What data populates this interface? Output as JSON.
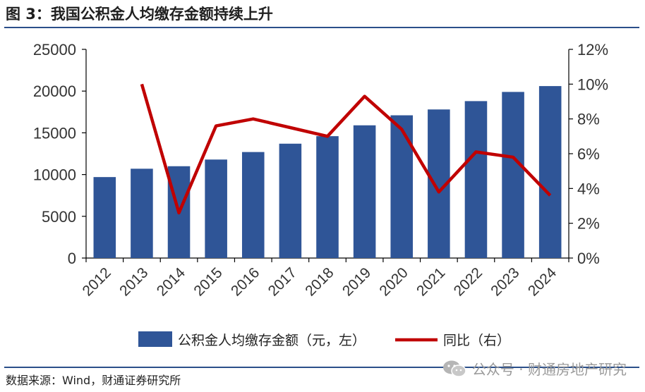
{
  "title": "图 3：我国公积金人均缴存金额持续上升",
  "source": "数据来源：Wind，财通证券研究所",
  "watermark": "公众号 · 财通房地产研究",
  "colors": {
    "bar": "#2f5597",
    "line": "#c00000",
    "rule": "#2b4f8a"
  },
  "chart_data": {
    "type": "bar+line",
    "categories": [
      "2012",
      "2013",
      "2014",
      "2015",
      "2016",
      "2017",
      "2018",
      "2019",
      "2020",
      "2021",
      "2022",
      "2023",
      "2024"
    ],
    "series": [
      {
        "name": "公积金人均缴存金额（元，左）",
        "type": "bar",
        "axis": "left",
        "values": [
          9700,
          10700,
          11000,
          11800,
          12700,
          13700,
          14600,
          15900,
          17100,
          17800,
          18800,
          19900,
          20600
        ]
      },
      {
        "name": "同比（右）",
        "type": "line",
        "axis": "right",
        "values": [
          null,
          10.0,
          2.6,
          7.6,
          8.0,
          7.5,
          7.0,
          9.3,
          7.4,
          3.8,
          6.1,
          5.8,
          3.6
        ]
      }
    ],
    "y_left": {
      "min": 0,
      "max": 25000,
      "ticks": [
        "0",
        "5000",
        "10000",
        "15000",
        "20000",
        "25000"
      ]
    },
    "y_right": {
      "min": 0,
      "max": 12,
      "ticks": [
        "0%",
        "2%",
        "4%",
        "6%",
        "8%",
        "10%",
        "12%"
      ]
    },
    "legend_position": "bottom"
  }
}
